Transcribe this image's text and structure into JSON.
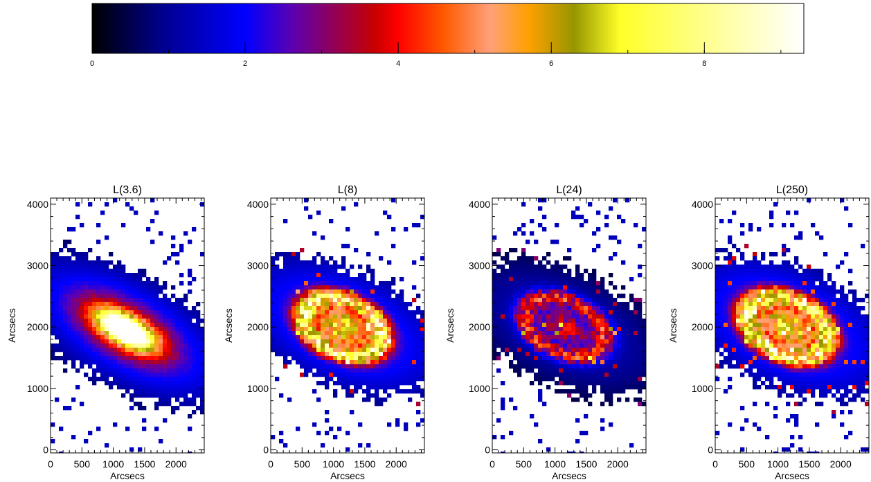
{
  "colorbar": {
    "ticks": [
      0,
      2,
      4,
      6,
      8
    ],
    "vmin": 0,
    "vmax": 9.3,
    "stops": [
      {
        "v": 0.0,
        "color": "#000000"
      },
      {
        "v": 0.9,
        "color": "#00008c"
      },
      {
        "v": 2.0,
        "color": "#0000ff"
      },
      {
        "v": 2.6,
        "color": "#5a00b4"
      },
      {
        "v": 3.2,
        "color": "#960050"
      },
      {
        "v": 3.7,
        "color": "#c80000"
      },
      {
        "v": 4.0,
        "color": "#ff0000"
      },
      {
        "v": 4.6,
        "color": "#ff5a00"
      },
      {
        "v": 5.2,
        "color": "#ffa07a"
      },
      {
        "v": 5.7,
        "color": "#ffa000"
      },
      {
        "v": 6.3,
        "color": "#969600"
      },
      {
        "v": 6.9,
        "color": "#ffff28"
      },
      {
        "v": 8.0,
        "color": "#ffff8c"
      },
      {
        "v": 9.3,
        "color": "#ffffff"
      }
    ]
  },
  "chart_data": [
    {
      "type": "heatmap",
      "title": "L(3.6)",
      "xlabel": "Arcsecs",
      "ylabel": "Arcsecs",
      "xticks": [
        0,
        500,
        1000,
        1500,
        2000
      ],
      "yticks": [
        0,
        1000,
        2000,
        3000,
        4000
      ],
      "xlim": [
        0,
        2450
      ],
      "ylim": [
        -50,
        4100
      ],
      "center": [
        1200,
        1950
      ],
      "major": 2000,
      "minor": 920,
      "angle": -30,
      "peak": 9.0
    },
    {
      "type": "heatmap",
      "title": "L(8)",
      "xlabel": "Arcsecs",
      "ylabel": "Arcsecs",
      "xticks": [
        0,
        500,
        1000,
        1500,
        2000
      ],
      "yticks": [
        0,
        1000,
        2000,
        3000,
        4000
      ],
      "xlim": [
        0,
        2450
      ],
      "ylim": [
        -50,
        4100
      ],
      "center": [
        1150,
        2000
      ],
      "major": 1750,
      "minor": 950,
      "angle": -25,
      "peak": 8.0
    },
    {
      "type": "heatmap",
      "title": "L(24)",
      "xlabel": "Arcsecs",
      "ylabel": "Arcsecs",
      "xticks": [
        0,
        500,
        1000,
        1500,
        2000
      ],
      "yticks": [
        0,
        1000,
        2000,
        3000,
        4000
      ],
      "xlim": [
        0,
        2450
      ],
      "ylim": [
        -50,
        4100
      ],
      "center": [
        1150,
        2000
      ],
      "major": 1800,
      "minor": 950,
      "angle": -25,
      "peak": 6.5
    },
    {
      "type": "heatmap",
      "title": "L(250)",
      "xlabel": "Arcsecs",
      "ylabel": "Arcsecs",
      "xticks": [
        0,
        500,
        1000,
        1500,
        2000
      ],
      "yticks": [
        0,
        1000,
        2000,
        3000,
        4000
      ],
      "xlim": [
        0,
        2450
      ],
      "ylim": [
        -50,
        4100
      ],
      "center": [
        1150,
        2000
      ],
      "major": 1800,
      "minor": 1000,
      "angle": -25,
      "peak": 7.5
    }
  ]
}
